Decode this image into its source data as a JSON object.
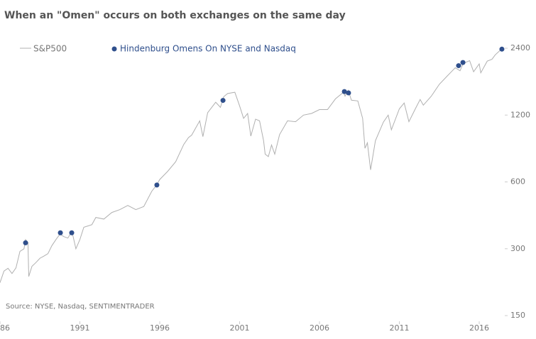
{
  "chart_data": {
    "type": "line",
    "title": "When an \"Omen\" occurs on both exchanges on the same day",
    "source": "Source: NYSE, Nasdaq, SENTIMENTRADER",
    "ylog": true,
    "xlim": [
      1986,
      2017.6
    ],
    "ylim": [
      150,
      2400
    ],
    "xticks": [
      1986,
      1991,
      1996,
      2001,
      2006,
      2011,
      2016
    ],
    "yticks": [
      150,
      300,
      600,
      1200,
      2400
    ],
    "series": [
      {
        "name": "S&P500",
        "type": "line",
        "color": "#b0b0b0",
        "x": [
          1986.0,
          1986.25,
          1986.5,
          1986.75,
          1987.0,
          1987.25,
          1987.5,
          1987.6,
          1987.75,
          1987.8,
          1988.0,
          1988.25,
          1988.5,
          1988.75,
          1989.0,
          1989.25,
          1989.5,
          1989.75,
          1990.0,
          1990.25,
          1990.5,
          1990.75,
          1991.0,
          1991.25,
          1991.5,
          1991.75,
          1992.0,
          1992.5,
          1993.0,
          1993.5,
          1994.0,
          1994.5,
          1995.0,
          1995.5,
          1995.8,
          1996.0,
          1996.5,
          1997.0,
          1997.5,
          1997.8,
          1998.0,
          1998.5,
          1998.7,
          1999.0,
          1999.5,
          1999.8,
          2000.0,
          2000.25,
          2000.7,
          2001.0,
          2001.25,
          2001.5,
          2001.7,
          2002.0,
          2002.25,
          2002.5,
          2002.6,
          2002.8,
          2003.0,
          2003.2,
          2003.5,
          2004.0,
          2004.5,
          2005.0,
          2005.5,
          2006.0,
          2006.5,
          2007.0,
          2007.5,
          2007.6,
          2007.8,
          2008.0,
          2008.4,
          2008.7,
          2008.85,
          2009.0,
          2009.2,
          2009.5,
          2010.0,
          2010.3,
          2010.5,
          2011.0,
          2011.3,
          2011.6,
          2012.0,
          2012.3,
          2012.5,
          2013.0,
          2013.5,
          2014.0,
          2014.5,
          2014.8,
          2015.0,
          2015.4,
          2015.65,
          2016.0,
          2016.1,
          2016.5,
          2016.8,
          2017.0,
          2017.4
        ],
        "values": [
          211,
          238,
          245,
          232,
          246,
          292,
          300,
          330,
          320,
          225,
          250,
          260,
          272,
          278,
          285,
          310,
          330,
          349,
          340,
          335,
          360,
          300,
          330,
          375,
          380,
          385,
          415,
          408,
          437,
          450,
          470,
          450,
          465,
          545,
          580,
          615,
          670,
          740,
          885,
          950,
          975,
          1130,
          960,
          1230,
          1370,
          1300,
          1450,
          1500,
          1520,
          1320,
          1160,
          1220,
          965,
          1150,
          1130,
          920,
          800,
          780,
          880,
          800,
          980,
          1130,
          1120,
          1200,
          1220,
          1270,
          1270,
          1420,
          1520,
          1460,
          1550,
          1400,
          1390,
          1160,
          850,
          900,
          680,
          920,
          1115,
          1200,
          1030,
          1280,
          1360,
          1120,
          1280,
          1410,
          1330,
          1460,
          1650,
          1800,
          1960,
          1900,
          2050,
          2110,
          1880,
          2040,
          1860,
          2100,
          2140,
          2240,
          2380
        ]
      },
      {
        "name": "Hindenburg Omens On NYSE and Nasdaq",
        "type": "scatter",
        "color": "#2f4f8c",
        "x": [
          1987.6,
          1989.78,
          1990.49,
          1995.82,
          1999.96,
          2007.56,
          2007.82,
          2014.71,
          2014.98,
          2017.42
        ],
        "values": [
          319,
          354,
          354,
          581,
          1397,
          1531,
          1510,
          2003,
          2070,
          2377
        ]
      }
    ]
  }
}
